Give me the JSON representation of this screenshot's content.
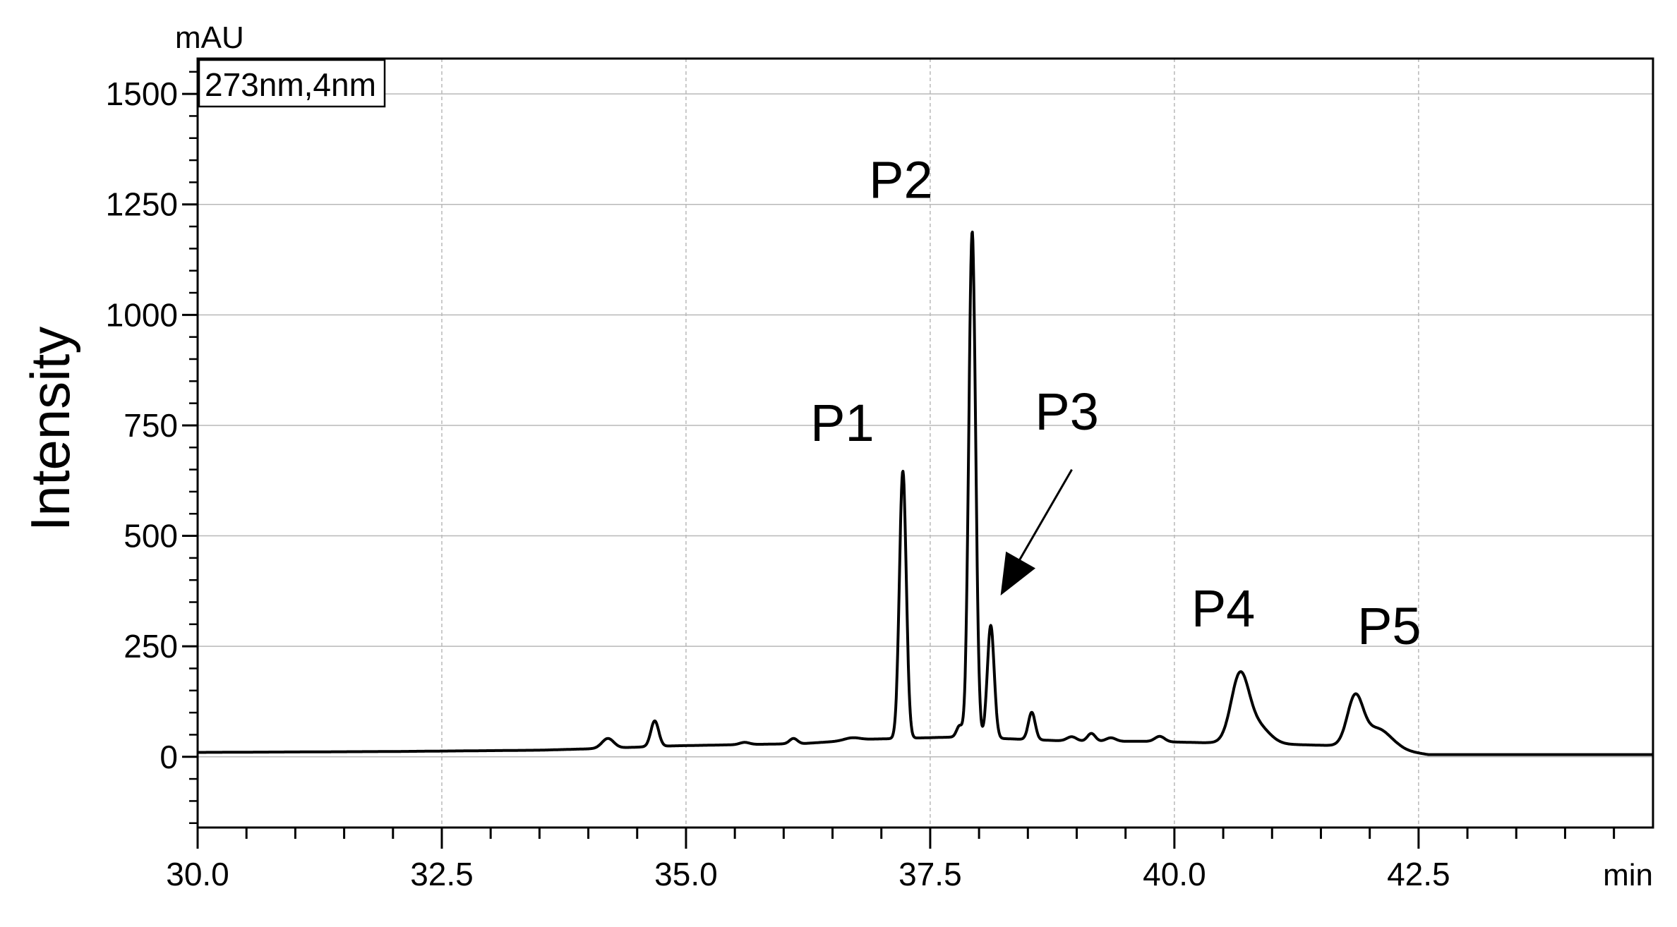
{
  "chart_data": {
    "type": "line",
    "ylabel": "Intensity",
    "y_unit": "mAU",
    "x_unit": "min",
    "legend_box": "273nm,4nm",
    "xlim": [
      30.0,
      44.9
    ],
    "ylim": [
      -160,
      1580
    ],
    "x_ticks": [
      "30.0",
      "32.5",
      "35.0",
      "37.5",
      "40.0",
      "42.5"
    ],
    "y_ticks": [
      "0",
      "250",
      "500",
      "750",
      "1000",
      "1250",
      "1500"
    ],
    "grid": true,
    "baseline": [
      [
        30.0,
        10
      ],
      [
        32.0,
        12
      ],
      [
        33.5,
        15
      ],
      [
        34.0,
        18
      ],
      [
        34.9,
        25
      ],
      [
        36.2,
        30
      ],
      [
        36.9,
        40
      ],
      [
        37.8,
        45
      ],
      [
        38.4,
        40
      ],
      [
        39.0,
        35
      ],
      [
        39.7,
        35
      ],
      [
        40.3,
        32
      ],
      [
        40.5,
        32
      ],
      [
        41.7,
        25
      ],
      [
        42.3,
        15
      ],
      [
        42.6,
        5
      ],
      [
        44.9,
        5
      ]
    ],
    "peaks": [
      {
        "rt": 34.2,
        "height": 22,
        "width": 0.06
      },
      {
        "rt": 34.68,
        "height": 58,
        "width": 0.04
      },
      {
        "rt": 35.6,
        "height": 5,
        "width": 0.05
      },
      {
        "rt": 36.1,
        "height": 12,
        "width": 0.04
      },
      {
        "rt": 36.7,
        "height": 6,
        "width": 0.08
      },
      {
        "rt": 37.22,
        "height": 605,
        "width": 0.035
      },
      {
        "rt": 37.8,
        "height": 25,
        "width": 0.03
      },
      {
        "rt": 37.93,
        "height": 1145,
        "width": 0.035
      },
      {
        "rt": 38.12,
        "height": 255,
        "width": 0.035
      },
      {
        "rt": 38.54,
        "height": 62,
        "width": 0.035
      },
      {
        "rt": 38.95,
        "height": 10,
        "width": 0.05
      },
      {
        "rt": 39.15,
        "height": 18,
        "width": 0.04
      },
      {
        "rt": 39.35,
        "height": 8,
        "width": 0.05
      },
      {
        "rt": 39.85,
        "height": 12,
        "width": 0.05
      },
      {
        "rt": 40.67,
        "height": 148,
        "width": 0.09
      },
      {
        "rt": 40.85,
        "height": 40,
        "width": 0.12
      },
      {
        "rt": 41.85,
        "height": 108,
        "width": 0.08
      },
      {
        "rt": 42.08,
        "height": 45,
        "width": 0.14
      }
    ],
    "annotations": [
      {
        "label": "P1",
        "x": 36.6,
        "y": 715
      },
      {
        "label": "P2",
        "x": 37.2,
        "y": 1265
      },
      {
        "label": "P3",
        "x": 38.9,
        "y": 740
      },
      {
        "label": "P4",
        "x": 40.5,
        "y": 295
      },
      {
        "label": "P5",
        "x": 42.2,
        "y": 255
      }
    ]
  }
}
